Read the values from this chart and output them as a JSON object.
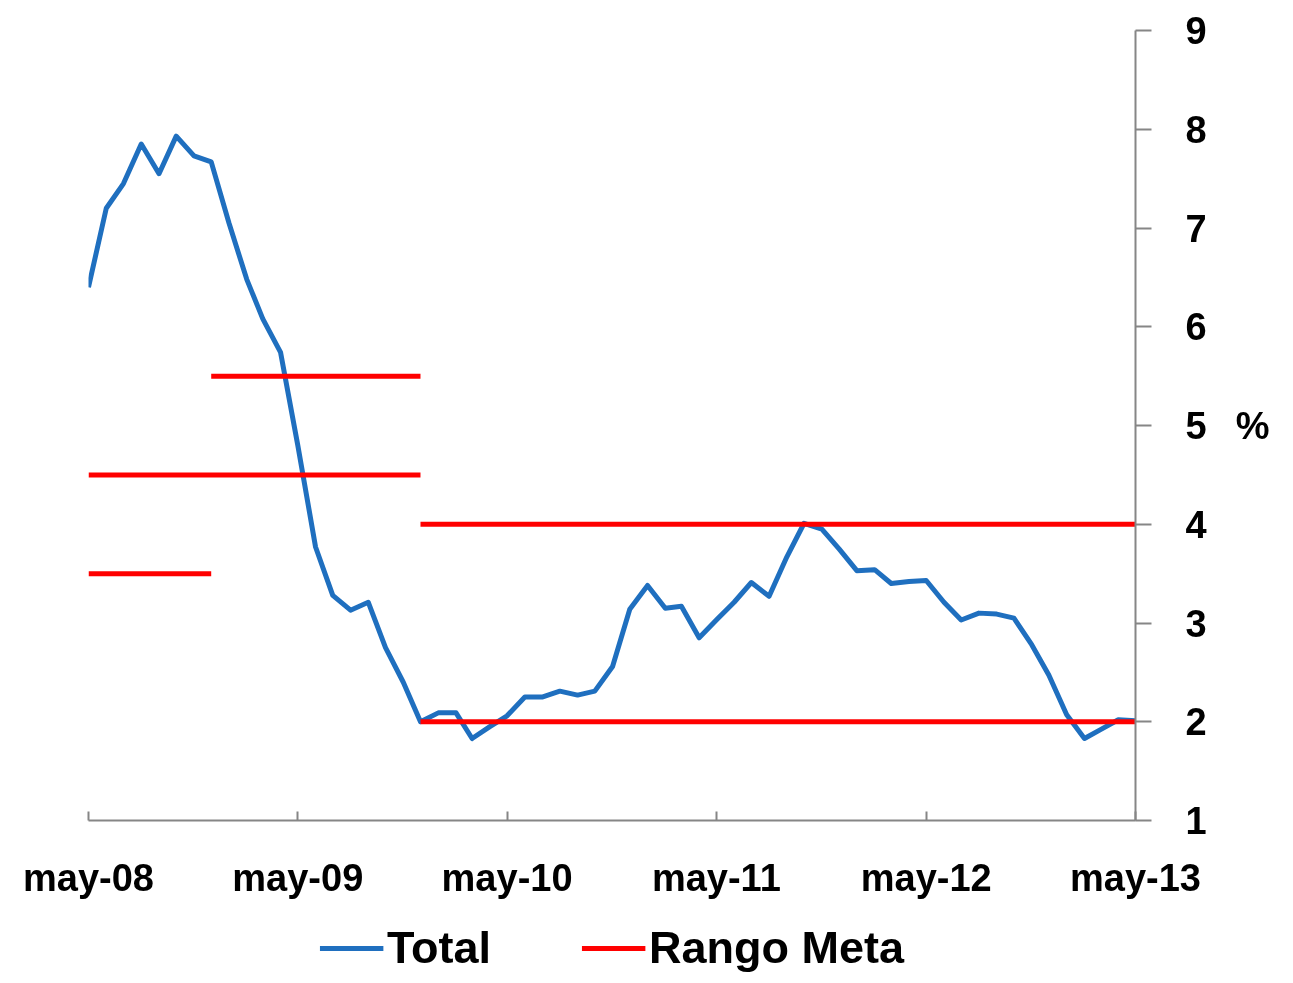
{
  "chart_data": {
    "type": "line",
    "ylabel": "%",
    "legend": "bottom",
    "line_style": "solid",
    "x": [
      "2008-05",
      "2008-06",
      "2008-07",
      "2008-08",
      "2008-09",
      "2008-10",
      "2008-11",
      "2008-12",
      "2009-01",
      "2009-02",
      "2009-03",
      "2009-04",
      "2009-05",
      "2009-06",
      "2009-07",
      "2009-08",
      "2009-09",
      "2009-10",
      "2009-11",
      "2009-12",
      "2010-01",
      "2010-02",
      "2010-03",
      "2010-04",
      "2010-05",
      "2010-06",
      "2010-07",
      "2010-08",
      "2010-09",
      "2010-10",
      "2010-11",
      "2010-12",
      "2011-01",
      "2011-02",
      "2011-03",
      "2011-04",
      "2011-05",
      "2011-06",
      "2011-07",
      "2011-08",
      "2011-09",
      "2011-10",
      "2011-11",
      "2011-12",
      "2012-01",
      "2012-02",
      "2012-03",
      "2012-04",
      "2012-05",
      "2012-06",
      "2012-07",
      "2012-08",
      "2012-09",
      "2012-10",
      "2012-11",
      "2012-12",
      "2013-01",
      "2013-02",
      "2013-03",
      "2013-04",
      "2013-05"
    ],
    "xlim": [
      "2008-05",
      "2013-05"
    ],
    "xticks": [
      {
        "value": "2008-05",
        "label": "may-08"
      },
      {
        "value": "2009-05",
        "label": "may-09"
      },
      {
        "value": "2010-05",
        "label": "may-10"
      },
      {
        "value": "2011-05",
        "label": "may-11"
      },
      {
        "value": "2012-05",
        "label": "may-12"
      },
      {
        "value": "2013-05",
        "label": "may-13"
      }
    ],
    "ylim": [
      1,
      9
    ],
    "yticks": [
      1,
      2,
      3,
      4,
      5,
      6,
      7,
      8,
      9
    ],
    "series": [
      {
        "name": "Total",
        "color": "#1f6fbf",
        "values": [
          6.4,
          7.2,
          7.45,
          7.85,
          7.55,
          7.93,
          7.73,
          7.67,
          7.05,
          6.48,
          6.08,
          5.74,
          4.8,
          3.77,
          3.28,
          3.13,
          3.21,
          2.75,
          2.4,
          2.0,
          2.09,
          2.09,
          1.83,
          1.95,
          2.06,
          2.25,
          2.25,
          2.31,
          2.27,
          2.31,
          2.56,
          3.14,
          3.38,
          3.15,
          3.17,
          2.85,
          3.03,
          3.21,
          3.41,
          3.27,
          3.67,
          4.01,
          3.95,
          3.75,
          3.53,
          3.54,
          3.4,
          3.42,
          3.43,
          3.21,
          3.03,
          3.1,
          3.09,
          3.05,
          2.78,
          2.47,
          2.07,
          1.83,
          1.92,
          2.02,
          2.01
        ]
      },
      {
        "name": "Rango Meta",
        "color": "#ff0000",
        "x": [
          "2009-12",
          "2013-05"
        ],
        "values": [
          2,
          2
        ]
      },
      {
        "color": "#ff0000",
        "x": [
          "2009-12",
          "2013-05"
        ],
        "values": [
          4,
          4
        ]
      },
      {
        "color": "#ff0000",
        "x": [
          "2008-05",
          "2008-12"
        ],
        "values": [
          3.5,
          3.5
        ]
      },
      {
        "color": "#ff0000",
        "x": [
          "2008-05",
          "2009-12"
        ],
        "values": [
          4.5,
          4.5
        ]
      },
      {
        "color": "#ff0000",
        "x": [
          "2008-12",
          "2009-12"
        ],
        "values": [
          5.5,
          5.5
        ]
      }
    ]
  }
}
